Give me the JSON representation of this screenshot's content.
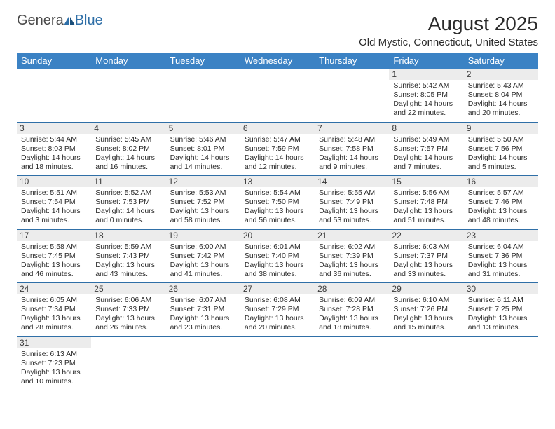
{
  "logo": {
    "part1": "Genera",
    "part2": "Blue"
  },
  "title": "August 2025",
  "location": "Old Mystic, Connecticut, United States",
  "colors": {
    "header_bg": "#3b82c4",
    "header_text": "#ffffff",
    "divider": "#2f6fa7",
    "daynum_bg": "#ececec",
    "text": "#2b2b2b",
    "logo_gray": "#4a4a4a",
    "logo_blue": "#2f6fa7"
  },
  "weekdays": [
    "Sunday",
    "Monday",
    "Tuesday",
    "Wednesday",
    "Thursday",
    "Friday",
    "Saturday"
  ],
  "weeks": [
    [
      null,
      null,
      null,
      null,
      null,
      {
        "n": "1",
        "sr": "5:42 AM",
        "ss": "8:05 PM",
        "dl": "14 hours and 22 minutes."
      },
      {
        "n": "2",
        "sr": "5:43 AM",
        "ss": "8:04 PM",
        "dl": "14 hours and 20 minutes."
      }
    ],
    [
      {
        "n": "3",
        "sr": "5:44 AM",
        "ss": "8:03 PM",
        "dl": "14 hours and 18 minutes."
      },
      {
        "n": "4",
        "sr": "5:45 AM",
        "ss": "8:02 PM",
        "dl": "14 hours and 16 minutes."
      },
      {
        "n": "5",
        "sr": "5:46 AM",
        "ss": "8:01 PM",
        "dl": "14 hours and 14 minutes."
      },
      {
        "n": "6",
        "sr": "5:47 AM",
        "ss": "7:59 PM",
        "dl": "14 hours and 12 minutes."
      },
      {
        "n": "7",
        "sr": "5:48 AM",
        "ss": "7:58 PM",
        "dl": "14 hours and 9 minutes."
      },
      {
        "n": "8",
        "sr": "5:49 AM",
        "ss": "7:57 PM",
        "dl": "14 hours and 7 minutes."
      },
      {
        "n": "9",
        "sr": "5:50 AM",
        "ss": "7:56 PM",
        "dl": "14 hours and 5 minutes."
      }
    ],
    [
      {
        "n": "10",
        "sr": "5:51 AM",
        "ss": "7:54 PM",
        "dl": "14 hours and 3 minutes."
      },
      {
        "n": "11",
        "sr": "5:52 AM",
        "ss": "7:53 PM",
        "dl": "14 hours and 0 minutes."
      },
      {
        "n": "12",
        "sr": "5:53 AM",
        "ss": "7:52 PM",
        "dl": "13 hours and 58 minutes."
      },
      {
        "n": "13",
        "sr": "5:54 AM",
        "ss": "7:50 PM",
        "dl": "13 hours and 56 minutes."
      },
      {
        "n": "14",
        "sr": "5:55 AM",
        "ss": "7:49 PM",
        "dl": "13 hours and 53 minutes."
      },
      {
        "n": "15",
        "sr": "5:56 AM",
        "ss": "7:48 PM",
        "dl": "13 hours and 51 minutes."
      },
      {
        "n": "16",
        "sr": "5:57 AM",
        "ss": "7:46 PM",
        "dl": "13 hours and 48 minutes."
      }
    ],
    [
      {
        "n": "17",
        "sr": "5:58 AM",
        "ss": "7:45 PM",
        "dl": "13 hours and 46 minutes."
      },
      {
        "n": "18",
        "sr": "5:59 AM",
        "ss": "7:43 PM",
        "dl": "13 hours and 43 minutes."
      },
      {
        "n": "19",
        "sr": "6:00 AM",
        "ss": "7:42 PM",
        "dl": "13 hours and 41 minutes."
      },
      {
        "n": "20",
        "sr": "6:01 AM",
        "ss": "7:40 PM",
        "dl": "13 hours and 38 minutes."
      },
      {
        "n": "21",
        "sr": "6:02 AM",
        "ss": "7:39 PM",
        "dl": "13 hours and 36 minutes."
      },
      {
        "n": "22",
        "sr": "6:03 AM",
        "ss": "7:37 PM",
        "dl": "13 hours and 33 minutes."
      },
      {
        "n": "23",
        "sr": "6:04 AM",
        "ss": "7:36 PM",
        "dl": "13 hours and 31 minutes."
      }
    ],
    [
      {
        "n": "24",
        "sr": "6:05 AM",
        "ss": "7:34 PM",
        "dl": "13 hours and 28 minutes."
      },
      {
        "n": "25",
        "sr": "6:06 AM",
        "ss": "7:33 PM",
        "dl": "13 hours and 26 minutes."
      },
      {
        "n": "26",
        "sr": "6:07 AM",
        "ss": "7:31 PM",
        "dl": "13 hours and 23 minutes."
      },
      {
        "n": "27",
        "sr": "6:08 AM",
        "ss": "7:29 PM",
        "dl": "13 hours and 20 minutes."
      },
      {
        "n": "28",
        "sr": "6:09 AM",
        "ss": "7:28 PM",
        "dl": "13 hours and 18 minutes."
      },
      {
        "n": "29",
        "sr": "6:10 AM",
        "ss": "7:26 PM",
        "dl": "13 hours and 15 minutes."
      },
      {
        "n": "30",
        "sr": "6:11 AM",
        "ss": "7:25 PM",
        "dl": "13 hours and 13 minutes."
      }
    ],
    [
      {
        "n": "31",
        "sr": "6:13 AM",
        "ss": "7:23 PM",
        "dl": "13 hours and 10 minutes."
      },
      null,
      null,
      null,
      null,
      null,
      null
    ]
  ],
  "labels": {
    "sunrise": "Sunrise: ",
    "sunset": "Sunset: ",
    "daylight": "Daylight: "
  }
}
